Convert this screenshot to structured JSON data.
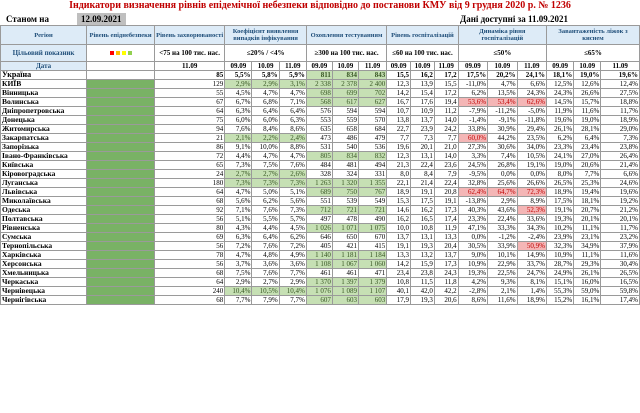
{
  "title": "Індикатори визначення рівнів епідемічної небезпеки відповідно до постанови КМУ від 9 грудня 2020 р. № 1236",
  "status_label": "Станом на",
  "status_date": "12.09.2021",
  "data_available": "Дані доступні за 11.09.2021",
  "colors": {
    "green_dark": "#79b265",
    "green_light": "#c6e0b4",
    "pink": "#f4b6b6",
    "header_bg": "#ddebf7",
    "title": "#c00000"
  },
  "headers": {
    "region": "Регіон",
    "level": "Рівень епіднебезпеки",
    "morbidity": "Рівень захворюваності",
    "detect": "Коефіцієнт виявлення випадків інфікування",
    "testing": "Охоплення тестуванням",
    "hosp": "Рівень госпіталізацій",
    "hosp_dyn": "Динаміка рівня госпіталізацій",
    "oxygen": "Завантаженість ліжок з киснем"
  },
  "target_label": "Цільовий показник",
  "targets": {
    "morbidity": "<75 на 100 тис. нас.",
    "detect": "≤20% / <4%",
    "testing": "≥300 на 100 тис. нас.",
    "hosp": "≤60 на 100 тис. нас.",
    "hosp_dyn": "≤50%",
    "oxygen": "≤65%"
  },
  "date_label": "Дата",
  "date_single": "11.09",
  "dates": [
    "09.09",
    "10.09",
    "11.09"
  ],
  "rows": [
    {
      "region": "Україна",
      "morb": "85",
      "det": [
        "5,5%",
        "5,8%",
        "5,9%"
      ],
      "test": [
        "811",
        "834",
        "843"
      ],
      "hosp": [
        "15,5",
        "16,2",
        "17,2"
      ],
      "dyn": [
        "17,5%",
        "20,2%",
        "24,1%"
      ],
      "oxy": [
        "18,1%",
        "19,0%",
        "19,6%"
      ]
    },
    {
      "region": "КИЇВ",
      "morb": "129",
      "det": [
        "2,9%",
        "2,9%",
        "3,1%"
      ],
      "test": [
        "2 338",
        "2 378",
        "2 400"
      ],
      "hosp": [
        "12,3",
        "13,9",
        "15,5"
      ],
      "dyn": [
        "-11,0%",
        "4,7%",
        "6,6%"
      ],
      "oxy": [
        "12,5%",
        "12,6%",
        "12,4%"
      ]
    },
    {
      "region": "Вінницька",
      "morb": "55",
      "det": [
        "4,5%",
        "4,7%",
        "4,7%"
      ],
      "test": [
        "698",
        "699",
        "702"
      ],
      "hosp": [
        "14,2",
        "15,4",
        "17,2"
      ],
      "dyn": [
        "6,2%",
        "13,5%",
        "24,3%"
      ],
      "oxy": [
        "24,3%",
        "26,6%",
        "27,5%"
      ]
    },
    {
      "region": "Волинська",
      "morb": "67",
      "det": [
        "6,7%",
        "6,8%",
        "7,1%"
      ],
      "test": [
        "568",
        "617",
        "627"
      ],
      "hosp": [
        "16,7",
        "17,6",
        "19,4"
      ],
      "dyn": [
        "53,6%",
        "53,4%",
        "62,6%"
      ],
      "oxy": [
        "14,5%",
        "15,7%",
        "18,8%"
      ]
    },
    {
      "region": "Дніпропетровська",
      "morb": "64",
      "det": [
        "6,3%",
        "6,4%",
        "6,4%"
      ],
      "test": [
        "576",
        "594",
        "594"
      ],
      "hosp": [
        "10,7",
        "10,9",
        "11,2"
      ],
      "dyn": [
        "-7,9%",
        "-11,2%",
        "-5,0%"
      ],
      "oxy": [
        "11,9%",
        "11,6%",
        "11,7%"
      ]
    },
    {
      "region": "Донецька",
      "morb": "75",
      "det": [
        "6,0%",
        "6,0%",
        "6,3%"
      ],
      "test": [
        "553",
        "559",
        "570"
      ],
      "hosp": [
        "13,8",
        "13,7",
        "14,0"
      ],
      "dyn": [
        "-1,4%",
        "-9,1%",
        "-11,8%"
      ],
      "oxy": [
        "19,6%",
        "19,0%",
        "18,9%"
      ]
    },
    {
      "region": "Житомирська",
      "morb": "94",
      "det": [
        "7,6%",
        "8,4%",
        "8,6%"
      ],
      "test": [
        "635",
        "658",
        "684"
      ],
      "hosp": [
        "22,7",
        "23,9",
        "24,2"
      ],
      "dyn": [
        "33,8%",
        "30,9%",
        "29,4%"
      ],
      "oxy": [
        "26,1%",
        "28,1%",
        "29,0%"
      ]
    },
    {
      "region": "Закарпатська",
      "morb": "21",
      "det": [
        "2,1%",
        "2,2%",
        "2,4%"
      ],
      "test": [
        "473",
        "486",
        "479"
      ],
      "hosp": [
        "7,7",
        "7,3",
        "7,7"
      ],
      "dyn": [
        "60,0%",
        "44,2%",
        "23,5%"
      ],
      "oxy": [
        "6,2%",
        "6,4%",
        "7,3%"
      ]
    },
    {
      "region": "Запорізька",
      "morb": "86",
      "det": [
        "9,1%",
        "10,0%",
        "8,8%"
      ],
      "test": [
        "531",
        "540",
        "536"
      ],
      "hosp": [
        "19,6",
        "20,1",
        "21,0"
      ],
      "dyn": [
        "27,3%",
        "30,6%",
        "34,0%"
      ],
      "oxy": [
        "23,3%",
        "23,4%",
        "23,8%"
      ]
    },
    {
      "region": "Івано-Франківська",
      "morb": "72",
      "det": [
        "4,4%",
        "4,7%",
        "4,7%"
      ],
      "test": [
        "805",
        "834",
        "832"
      ],
      "hosp": [
        "12,3",
        "13,1",
        "14,0"
      ],
      "dyn": [
        "3,3%",
        "7,4%",
        "10,5%"
      ],
      "oxy": [
        "24,1%",
        "27,0%",
        "26,4%"
      ]
    },
    {
      "region": "Київська",
      "morb": "65",
      "det": [
        "7,3%",
        "7,5%",
        "7,6%"
      ],
      "test": [
        "484",
        "481",
        "494"
      ],
      "hosp": [
        "21,3",
        "22,4",
        "23,6"
      ],
      "dyn": [
        "24,5%",
        "26,8%",
        "19,1%"
      ],
      "oxy": [
        "19,0%",
        "20,6%",
        "21,4%"
      ]
    },
    {
      "region": "Кіровоградська",
      "morb": "24",
      "det": [
        "2,7%",
        "2,7%",
        "2,6%"
      ],
      "test": [
        "328",
        "324",
        "331"
      ],
      "hosp": [
        "8,0",
        "8,4",
        "7,9"
      ],
      "dyn": [
        "-9,5%",
        "0,0%",
        "0,0%"
      ],
      "oxy": [
        "8,0%",
        "7,7%",
        "6,6%"
      ]
    },
    {
      "region": "Луганська",
      "morb": "180",
      "det": [
        "7,3%",
        "7,3%",
        "7,3%"
      ],
      "test": [
        "1 263",
        "1 320",
        "1 355"
      ],
      "hosp": [
        "22,1",
        "21,4",
        "22,4"
      ],
      "dyn": [
        "32,8%",
        "25,6%",
        "26,6%"
      ],
      "oxy": [
        "26,5%",
        "25,3%",
        "24,6%"
      ]
    },
    {
      "region": "Львівська",
      "morb": "64",
      "det": [
        "4,7%",
        "5,0%",
        "5,1%"
      ],
      "test": [
        "689",
        "750",
        "767"
      ],
      "hosp": [
        "18,9",
        "19,1",
        "20,8"
      ],
      "dyn": [
        "62,4%",
        "64,7%",
        "72,3%"
      ],
      "oxy": [
        "18,9%",
        "19,4%",
        "19,6%"
      ]
    },
    {
      "region": "Миколаївська",
      "morb": "68",
      "det": [
        "5,6%",
        "6,2%",
        "5,6%"
      ],
      "test": [
        "551",
        "539",
        "549"
      ],
      "hosp": [
        "15,3",
        "17,5",
        "19,1"
      ],
      "dyn": [
        "-13,8%",
        "2,9%",
        "8,9%"
      ],
      "oxy": [
        "17,5%",
        "18,1%",
        "19,2%"
      ]
    },
    {
      "region": "Одеська",
      "morb": "92",
      "det": [
        "7,1%",
        "7,6%",
        "7,3%"
      ],
      "test": [
        "712",
        "721",
        "721"
      ],
      "hosp": [
        "14,6",
        "16,2",
        "17,3"
      ],
      "dyn": [
        "40,3%",
        "43,6%",
        "52,3%"
      ],
      "oxy": [
        "19,1%",
        "20,7%",
        "21,2%"
      ]
    },
    {
      "region": "Полтавська",
      "morb": "56",
      "det": [
        "5,1%",
        "5,5%",
        "5,7%"
      ],
      "test": [
        "497",
        "478",
        "490"
      ],
      "hosp": [
        "16,2",
        "16,5",
        "17,4"
      ],
      "dyn": [
        "23,3%",
        "22,4%",
        "33,6%"
      ],
      "oxy": [
        "19,3%",
        "20,1%",
        "20,1%"
      ]
    },
    {
      "region": "Рівненська",
      "morb": "80",
      "det": [
        "4,3%",
        "4,4%",
        "4,5%"
      ],
      "test": [
        "1 026",
        "1 071",
        "1 075"
      ],
      "hosp": [
        "10,0",
        "10,8",
        "11,9"
      ],
      "dyn": [
        "47,1%",
        "33,3%",
        "34,3%"
      ],
      "oxy": [
        "10,2%",
        "11,1%",
        "11,7%"
      ]
    },
    {
      "region": "Сумська",
      "morb": "69",
      "det": [
        "6,3%",
        "6,4%",
        "6,2%"
      ],
      "test": [
        "646",
        "650",
        "670"
      ],
      "hosp": [
        "13,7",
        "13,1",
        "13,3"
      ],
      "dyn": [
        "0,0%",
        "-1,2%",
        "-2,4%"
      ],
      "oxy": [
        "23,9%",
        "23,1%",
        "23,2%"
      ]
    },
    {
      "region": "Тернопільська",
      "morb": "56",
      "det": [
        "7,2%",
        "7,6%",
        "7,2%"
      ],
      "test": [
        "405",
        "421",
        "415"
      ],
      "hosp": [
        "19,1",
        "19,3",
        "20,4"
      ],
      "dyn": [
        "30,5%",
        "33,9%",
        "50,9%"
      ],
      "oxy": [
        "32,3%",
        "34,9%",
        "37,9%"
      ]
    },
    {
      "region": "Харківська",
      "morb": "78",
      "det": [
        "4,7%",
        "4,8%",
        "4,9%"
      ],
      "test": [
        "1 140",
        "1 181",
        "1 184"
      ],
      "hosp": [
        "13,3",
        "13,2",
        "13,7"
      ],
      "dyn": [
        "9,0%",
        "10,1%",
        "14,9%"
      ],
      "oxy": [
        "10,9%",
        "11,1%",
        "11,6%"
      ]
    },
    {
      "region": "Херсонська",
      "morb": "56",
      "det": [
        "3,7%",
        "3,6%",
        "3,6%"
      ],
      "test": [
        "1 108",
        "1 067",
        "1 060"
      ],
      "hosp": [
        "14,2",
        "15,9",
        "17,3"
      ],
      "dyn": [
        "10,9%",
        "22,9%",
        "33,7%"
      ],
      "oxy": [
        "28,7%",
        "29,3%",
        "30,4%"
      ]
    },
    {
      "region": "Хмельницька",
      "morb": "68",
      "det": [
        "7,5%",
        "7,6%",
        "7,7%"
      ],
      "test": [
        "461",
        "461",
        "471"
      ],
      "hosp": [
        "23,4",
        "23,8",
        "24,3"
      ],
      "dyn": [
        "19,3%",
        "22,5%",
        "24,7%"
      ],
      "oxy": [
        "24,9%",
        "26,1%",
        "26,5%"
      ]
    },
    {
      "region": "Черкаська",
      "morb": "64",
      "det": [
        "2,9%",
        "2,7%",
        "2,9%"
      ],
      "test": [
        "1 370",
        "1 397",
        "1 379"
      ],
      "hosp": [
        "10,8",
        "11,5",
        "11,8"
      ],
      "dyn": [
        "4,2%",
        "9,3%",
        "8,1%"
      ],
      "oxy": [
        "15,1%",
        "16,0%",
        "16,5%"
      ]
    },
    {
      "region": "Чернівецька",
      "morb": "240",
      "det": [
        "10,4%",
        "10,5%",
        "10,4%"
      ],
      "test": [
        "1 076",
        "1 089",
        "1 107"
      ],
      "hosp": [
        "40,1",
        "42,0",
        "42,2"
      ],
      "dyn": [
        "-2,8%",
        "2,1%",
        "1,4%"
      ],
      "oxy": [
        "55,3%",
        "59,0%",
        "59,8%"
      ]
    },
    {
      "region": "Чернігівська",
      "morb": "68",
      "det": [
        "7,7%",
        "7,9%",
        "7,7%"
      ],
      "test": [
        "607",
        "603",
        "603"
      ],
      "hosp": [
        "17,9",
        "19,3",
        "20,6"
      ],
      "dyn": [
        "8,6%",
        "11,6%",
        "18,9%"
      ],
      "oxy": [
        "15,2%",
        "16,1%",
        "17,4%"
      ]
    }
  ],
  "highlights": {
    "green_det_rows": [
      1,
      7,
      11,
      12,
      24
    ],
    "green_test_rows": [
      0,
      1,
      2,
      3,
      9,
      12,
      13,
      15,
      17,
      20,
      21,
      23,
      24,
      25
    ],
    "pink_dyn": [
      [
        3,
        0
      ],
      [
        3,
        1
      ],
      [
        3,
        2
      ],
      [
        7,
        0
      ],
      [
        13,
        0
      ],
      [
        13,
        1
      ],
      [
        13,
        2
      ],
      [
        15,
        2
      ],
      [
        19,
        2
      ]
    ]
  }
}
